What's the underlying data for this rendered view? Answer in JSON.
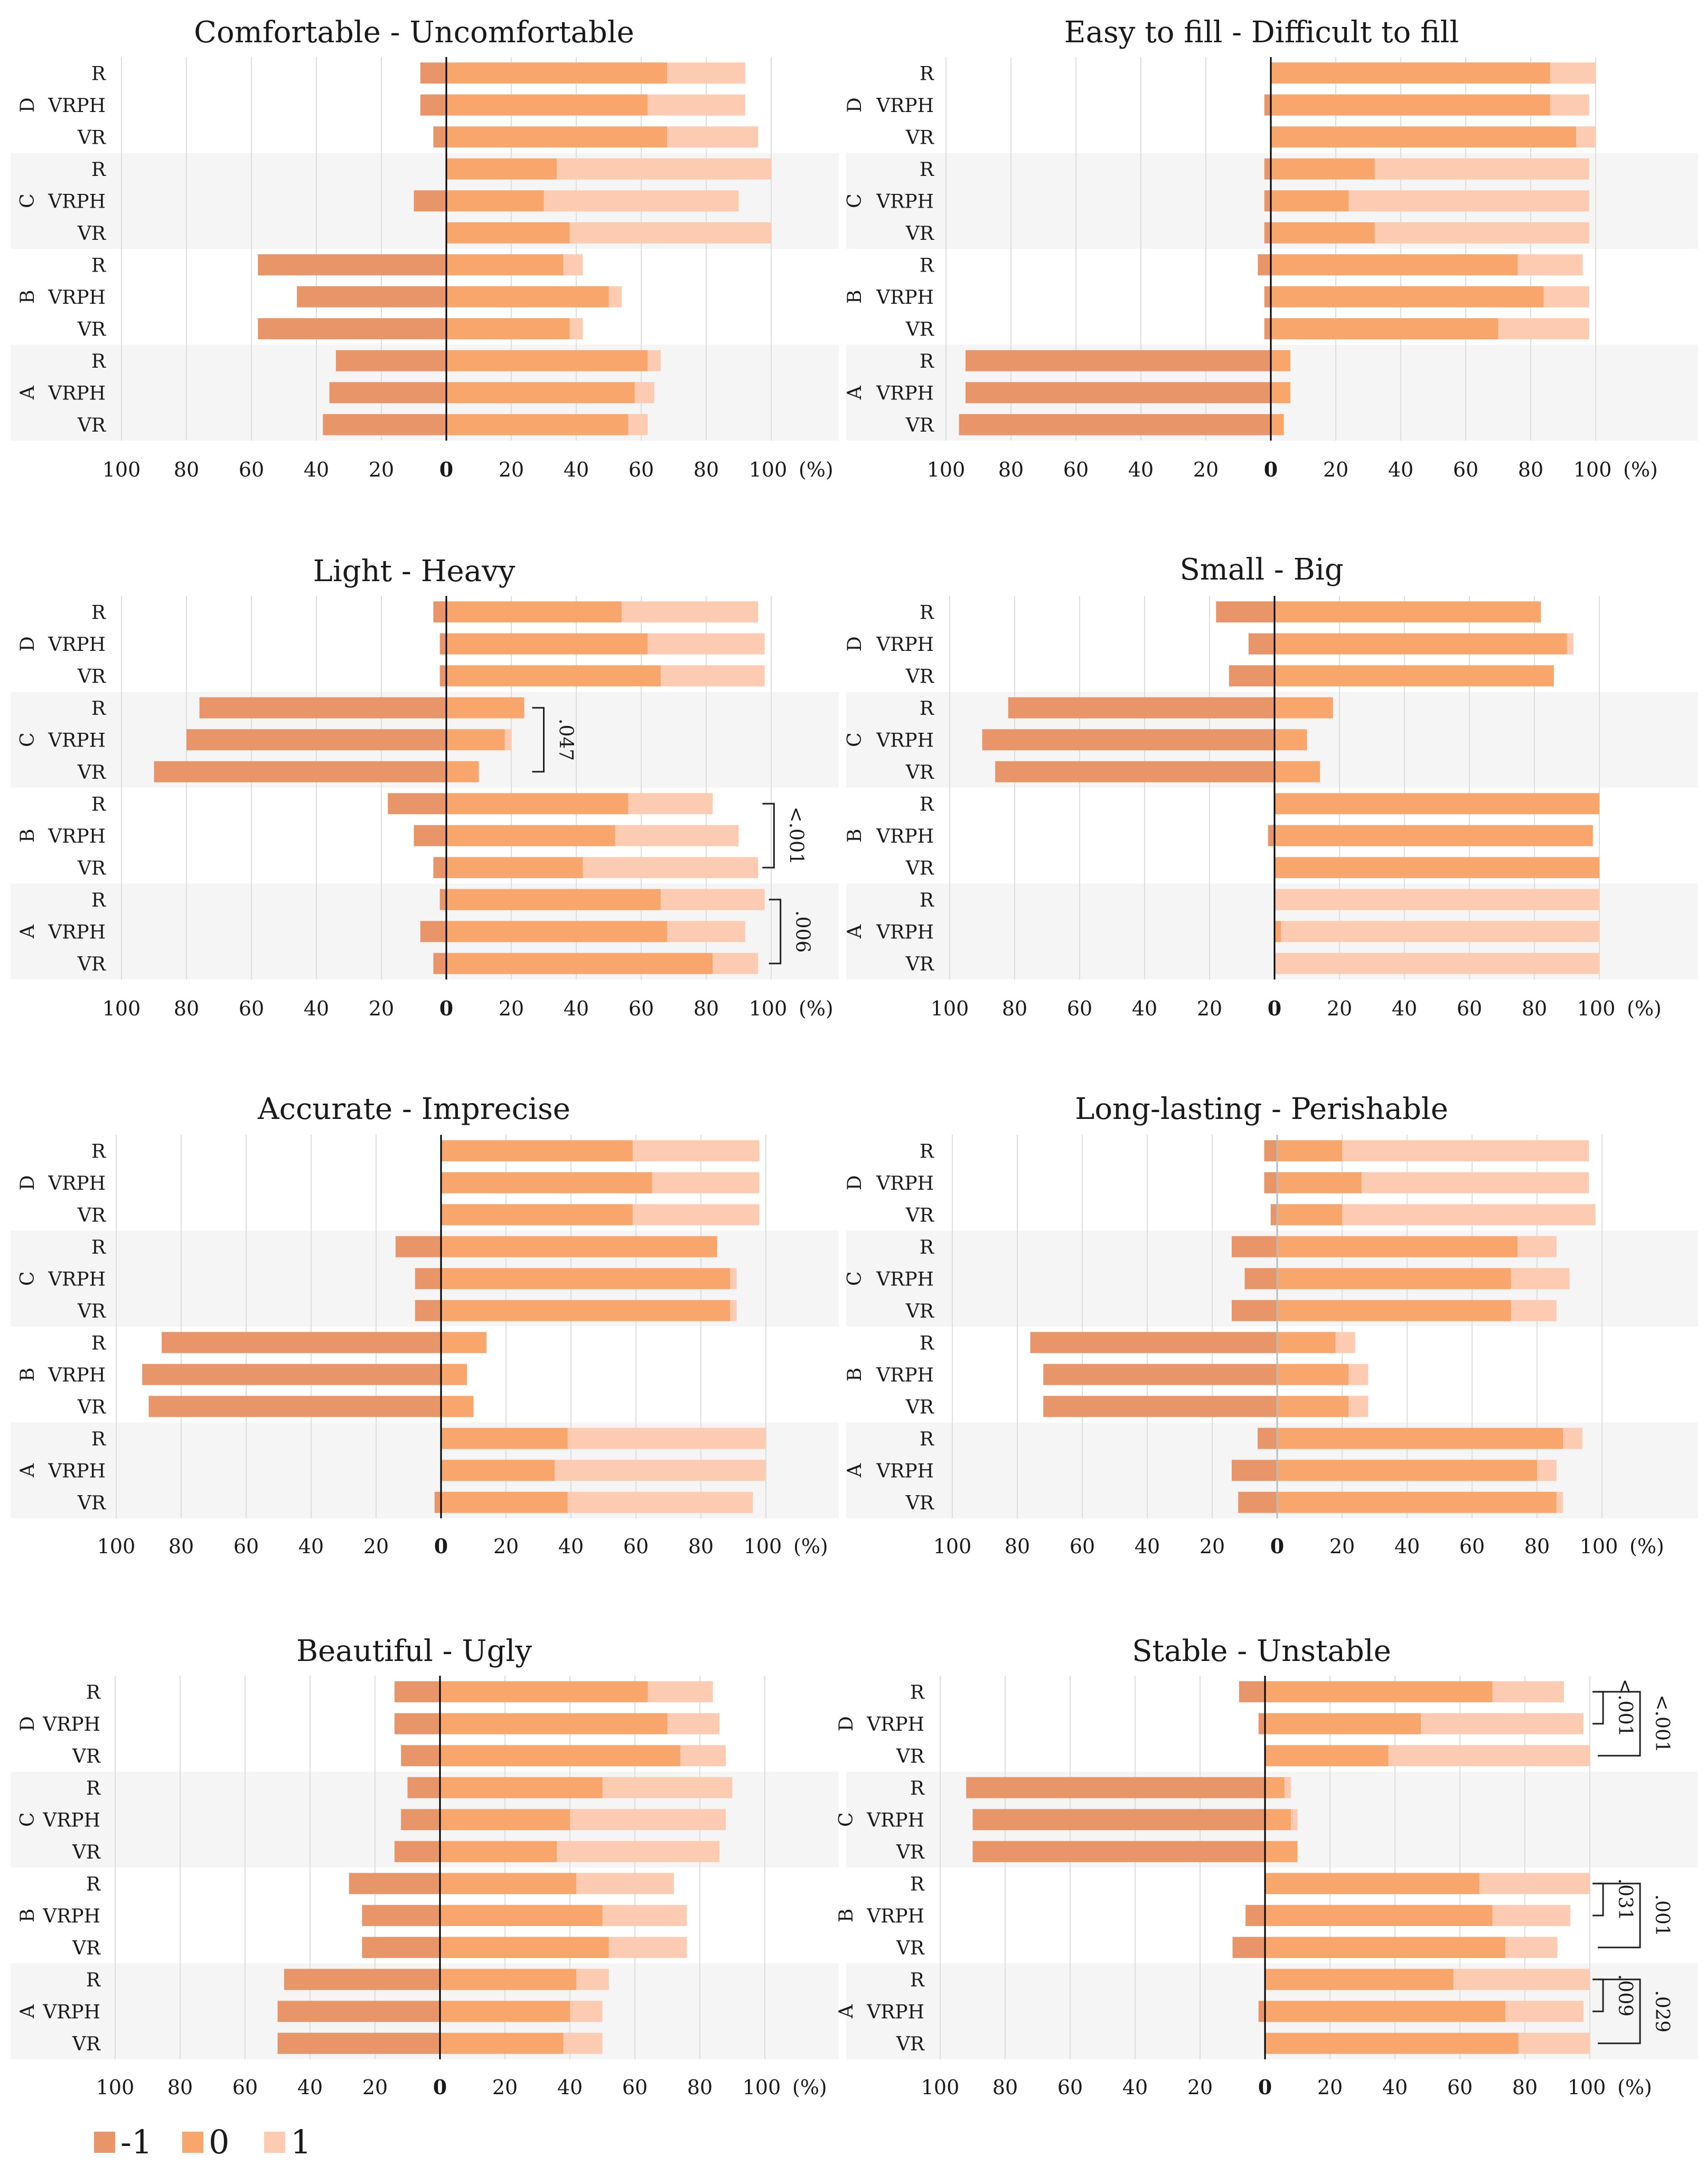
{
  "colors": {
    "neg": "#e8956a",
    "zero": "#f9a66c",
    "pos": "#fdcab2",
    "band": "#f5f5f5",
    "grid": "#dddddd",
    "axis": "#000000",
    "axis_gray": "#bbbbbb"
  },
  "legend": [
    {
      "key": "neg",
      "label": "-1"
    },
    {
      "key": "zero",
      "label": "0"
    },
    {
      "key": "pos",
      "label": "1"
    }
  ],
  "chart_data": [
    {
      "type": "bar",
      "title": "Comfortable - Uncomfortable",
      "xlim": [
        -100,
        100
      ],
      "unit": "(%)",
      "ticks": [
        "100",
        "80",
        "60",
        "40",
        "20",
        "0",
        "20",
        "40",
        "60",
        "80",
        "100"
      ],
      "groups": [
        {
          "label": "D",
          "rows": [
            {
              "label": "R",
              "neg": 8,
              "zero": 68,
              "pos": 24
            },
            {
              "label": "VRPH",
              "neg": 8,
              "zero": 62,
              "pos": 30
            },
            {
              "label": "VR",
              "neg": 4,
              "zero": 68,
              "pos": 28
            }
          ]
        },
        {
          "label": "C",
          "rows": [
            {
              "label": "R",
              "neg": 0,
              "zero": 34,
              "pos": 66
            },
            {
              "label": "VRPH",
              "neg": 10,
              "zero": 30,
              "pos": 60
            },
            {
              "label": "VR",
              "neg": 0,
              "zero": 38,
              "pos": 62
            }
          ]
        },
        {
          "label": "B",
          "rows": [
            {
              "label": "R",
              "neg": 58,
              "zero": 36,
              "pos": 6
            },
            {
              "label": "VRPH",
              "neg": 46,
              "zero": 50,
              "pos": 4
            },
            {
              "label": "VR",
              "neg": 58,
              "zero": 38,
              "pos": 4
            }
          ]
        },
        {
          "label": "A",
          "rows": [
            {
              "label": "R",
              "neg": 34,
              "zero": 62,
              "pos": 4
            },
            {
              "label": "VRPH",
              "neg": 36,
              "zero": 58,
              "pos": 6
            },
            {
              "label": "VR",
              "neg": 38,
              "zero": 56,
              "pos": 6
            }
          ]
        }
      ],
      "annotations": []
    },
    {
      "type": "bar",
      "title": "Easy to fill - Difficult to fill",
      "xlim": [
        -100,
        100
      ],
      "unit": "(%)",
      "ticks": [
        "100",
        "80",
        "60",
        "40",
        "20",
        "0",
        "20",
        "40",
        "60",
        "80",
        "100"
      ],
      "groups": [
        {
          "label": "D",
          "rows": [
            {
              "label": "R",
              "neg": 0,
              "zero": 86,
              "pos": 14
            },
            {
              "label": "VRPH",
              "neg": 2,
              "zero": 86,
              "pos": 12
            },
            {
              "label": "VR",
              "neg": 0,
              "zero": 94,
              "pos": 6
            }
          ]
        },
        {
          "label": "C",
          "rows": [
            {
              "label": "R",
              "neg": 2,
              "zero": 32,
              "pos": 66
            },
            {
              "label": "VRPH",
              "neg": 2,
              "zero": 24,
              "pos": 74
            },
            {
              "label": "VR",
              "neg": 2,
              "zero": 32,
              "pos": 66
            }
          ]
        },
        {
          "label": "B",
          "rows": [
            {
              "label": "R",
              "neg": 4,
              "zero": 76,
              "pos": 20
            },
            {
              "label": "VRPH",
              "neg": 2,
              "zero": 84,
              "pos": 14
            },
            {
              "label": "VR",
              "neg": 2,
              "zero": 70,
              "pos": 28
            }
          ]
        },
        {
          "label": "A",
          "rows": [
            {
              "label": "R",
              "neg": 94,
              "zero": 6,
              "pos": 0
            },
            {
              "label": "VRPH",
              "neg": 94,
              "zero": 6,
              "pos": 0
            },
            {
              "label": "VR",
              "neg": 96,
              "zero": 4,
              "pos": 0
            }
          ]
        }
      ],
      "annotations": []
    },
    {
      "type": "bar",
      "title": "Light - Heavy",
      "xlim": [
        -100,
        100
      ],
      "unit": "(%)",
      "ticks": [
        "100",
        "80",
        "60",
        "40",
        "20",
        "0",
        "20",
        "40",
        "60",
        "80",
        "100"
      ],
      "groups": [
        {
          "label": "D",
          "rows": [
            {
              "label": "R",
              "neg": 4,
              "zero": 54,
              "pos": 42
            },
            {
              "label": "VRPH",
              "neg": 2,
              "zero": 62,
              "pos": 36
            },
            {
              "label": "VR",
              "neg": 2,
              "zero": 66,
              "pos": 32
            }
          ]
        },
        {
          "label": "C",
          "rows": [
            {
              "label": "R",
              "neg": 76,
              "zero": 24,
              "pos": 0
            },
            {
              "label": "VRPH",
              "neg": 80,
              "zero": 18,
              "pos": 2
            },
            {
              "label": "VR",
              "neg": 90,
              "zero": 10,
              "pos": 0
            }
          ]
        },
        {
          "label": "B",
          "rows": [
            {
              "label": "R",
              "neg": 18,
              "zero": 56,
              "pos": 26
            },
            {
              "label": "VRPH",
              "neg": 10,
              "zero": 52,
              "pos": 38
            },
            {
              "label": "VR",
              "neg": 4,
              "zero": 42,
              "pos": 54
            }
          ]
        },
        {
          "label": "A",
          "rows": [
            {
              "label": "R",
              "neg": 2,
              "zero": 66,
              "pos": 32
            },
            {
              "label": "VRPH",
              "neg": 8,
              "zero": 68,
              "pos": 24
            },
            {
              "label": "VR",
              "neg": 4,
              "zero": 82,
              "pos": 14
            }
          ]
        }
      ],
      "annotations": [
        {
          "text": ".047",
          "group": "C",
          "from": "R",
          "to": "VR"
        },
        {
          "text": "<.001",
          "group": "B",
          "from": "R",
          "to": "VR"
        },
        {
          "text": ".006",
          "group": "A",
          "from": "R",
          "to": "VR"
        }
      ]
    },
    {
      "type": "bar",
      "title": "Small - Big",
      "xlim": [
        -100,
        100
      ],
      "unit": "(%)",
      "ticks": [
        "100",
        "80",
        "60",
        "40",
        "20",
        "0",
        "20",
        "40",
        "60",
        "80",
        "100"
      ],
      "groups": [
        {
          "label": "D",
          "rows": [
            {
              "label": "R",
              "neg": 18,
              "zero": 82,
              "pos": 0
            },
            {
              "label": "VRPH",
              "neg": 8,
              "zero": 90,
              "pos": 2
            },
            {
              "label": "VR",
              "neg": 14,
              "zero": 86,
              "pos": 0
            }
          ]
        },
        {
          "label": "C",
          "rows": [
            {
              "label": "R",
              "neg": 82,
              "zero": 18,
              "pos": 0
            },
            {
              "label": "VRPH",
              "neg": 90,
              "zero": 10,
              "pos": 0
            },
            {
              "label": "VR",
              "neg": 86,
              "zero": 14,
              "pos": 0
            }
          ]
        },
        {
          "label": "B",
          "rows": [
            {
              "label": "R",
              "neg": 0,
              "zero": 100,
              "pos": 0
            },
            {
              "label": "VRPH",
              "neg": 2,
              "zero": 98,
              "pos": 0
            },
            {
              "label": "VR",
              "neg": 0,
              "zero": 100,
              "pos": 0
            }
          ]
        },
        {
          "label": "A",
          "rows": [
            {
              "label": "R",
              "neg": 0,
              "zero": 0,
              "pos": 100
            },
            {
              "label": "VRPH",
              "neg": 0,
              "zero": 2,
              "pos": 98
            },
            {
              "label": "VR",
              "neg": 0,
              "zero": 0,
              "pos": 100
            }
          ]
        }
      ],
      "annotations": []
    },
    {
      "type": "bar",
      "title": "Accurate - Imprecise",
      "xlim": [
        -100,
        100
      ],
      "unit": "(%)",
      "ticks": [
        "100",
        "80",
        "60",
        "40",
        "20",
        "0",
        "20",
        "40",
        "60",
        "80",
        "100"
      ],
      "groups": [
        {
          "label": "D",
          "rows": [
            {
              "label": "R",
              "neg": 0,
              "zero": 59,
              "pos": 39
            },
            {
              "label": "VRPH",
              "neg": 0,
              "zero": 65,
              "pos": 33
            },
            {
              "label": "VR",
              "neg": 0,
              "zero": 59,
              "pos": 39
            }
          ]
        },
        {
          "label": "C",
          "rows": [
            {
              "label": "R",
              "neg": 14,
              "zero": 85,
              "pos": 0
            },
            {
              "label": "VRPH",
              "neg": 8,
              "zero": 89,
              "pos": 2
            },
            {
              "label": "VR",
              "neg": 8,
              "zero": 89,
              "pos": 2
            }
          ]
        },
        {
          "label": "B",
          "rows": [
            {
              "label": "R",
              "neg": 86,
              "zero": 14,
              "pos": 0
            },
            {
              "label": "VRPH",
              "neg": 92,
              "zero": 8,
              "pos": 0
            },
            {
              "label": "VR",
              "neg": 90,
              "zero": 10,
              "pos": 0
            }
          ]
        },
        {
          "label": "A",
          "rows": [
            {
              "label": "R",
              "neg": 0,
              "zero": 39,
              "pos": 61
            },
            {
              "label": "VRPH",
              "neg": 0,
              "zero": 35,
              "pos": 65
            },
            {
              "label": "VR",
              "neg": 2,
              "zero": 39,
              "pos": 57
            }
          ]
        }
      ],
      "annotations": []
    },
    {
      "type": "bar",
      "title": "Long-lasting - Perishable",
      "xlim": [
        -100,
        100
      ],
      "unit": "(%)",
      "ticks": [
        "100",
        "80",
        "60",
        "40",
        "20",
        "0",
        "20",
        "40",
        "60",
        "80",
        "100"
      ],
      "groups": [
        {
          "label": "D",
          "rows": [
            {
              "label": "R",
              "neg": 4,
              "zero": 20,
              "pos": 76
            },
            {
              "label": "VRPH",
              "neg": 4,
              "zero": 26,
              "pos": 70
            },
            {
              "label": "VR",
              "neg": 2,
              "zero": 20,
              "pos": 78
            }
          ]
        },
        {
          "label": "C",
          "rows": [
            {
              "label": "R",
              "neg": 14,
              "zero": 74,
              "pos": 12
            },
            {
              "label": "VRPH",
              "neg": 10,
              "zero": 72,
              "pos": 18
            },
            {
              "label": "VR",
              "neg": 14,
              "zero": 72,
              "pos": 14
            }
          ]
        },
        {
          "label": "B",
          "rows": [
            {
              "label": "R",
              "neg": 76,
              "zero": 18,
              "pos": 6
            },
            {
              "label": "VRPH",
              "neg": 72,
              "zero": 22,
              "pos": 6
            },
            {
              "label": "VR",
              "neg": 72,
              "zero": 22,
              "pos": 6
            }
          ]
        },
        {
          "label": "A",
          "rows": [
            {
              "label": "R",
              "neg": 6,
              "zero": 88,
              "pos": 6
            },
            {
              "label": "VRPH",
              "neg": 14,
              "zero": 80,
              "pos": 6
            },
            {
              "label": "VR",
              "neg": 12,
              "zero": 86,
              "pos": 2
            }
          ]
        }
      ],
      "annotations": []
    },
    {
      "type": "bar",
      "title": "Beautiful - Ugly",
      "xlim": [
        -100,
        100
      ],
      "unit": "(%)",
      "ticks": [
        "100",
        "80",
        "60",
        "40",
        "20",
        "0",
        "20",
        "40",
        "60",
        "80",
        "100"
      ],
      "groups": [
        {
          "label": "D",
          "rows": [
            {
              "label": "R",
              "neg": 14,
              "zero": 64,
              "pos": 20
            },
            {
              "label": "VRPH",
              "neg": 14,
              "zero": 70,
              "pos": 16
            },
            {
              "label": "VR",
              "neg": 12,
              "zero": 74,
              "pos": 14
            }
          ]
        },
        {
          "label": "C",
          "rows": [
            {
              "label": "R",
              "neg": 10,
              "zero": 50,
              "pos": 40
            },
            {
              "label": "VRPH",
              "neg": 12,
              "zero": 40,
              "pos": 48
            },
            {
              "label": "VR",
              "neg": 14,
              "zero": 36,
              "pos": 50
            }
          ]
        },
        {
          "label": "B",
          "rows": [
            {
              "label": "R",
              "neg": 28,
              "zero": 42,
              "pos": 30
            },
            {
              "label": "VRPH",
              "neg": 24,
              "zero": 50,
              "pos": 26
            },
            {
              "label": "VR",
              "neg": 24,
              "zero": 52,
              "pos": 24
            }
          ]
        },
        {
          "label": "A",
          "rows": [
            {
              "label": "R",
              "neg": 48,
              "zero": 42,
              "pos": 10
            },
            {
              "label": "VRPH",
              "neg": 50,
              "zero": 40,
              "pos": 10
            },
            {
              "label": "VR",
              "neg": 50,
              "zero": 38,
              "pos": 12
            }
          ]
        }
      ],
      "annotations": []
    },
    {
      "type": "bar",
      "title": "Stable - Unstable",
      "xlim": [
        -100,
        100
      ],
      "unit": "(%)",
      "ticks": [
        "100",
        "80",
        "60",
        "40",
        "20",
        "0",
        "20",
        "40",
        "60",
        "80",
        "100"
      ],
      "groups": [
        {
          "label": "D",
          "rows": [
            {
              "label": "R",
              "neg": 8,
              "zero": 70,
              "pos": 22
            },
            {
              "label": "VRPH",
              "neg": 2,
              "zero": 48,
              "pos": 50
            },
            {
              "label": "VR",
              "neg": 0,
              "zero": 38,
              "pos": 62
            }
          ]
        },
        {
          "label": "C",
          "rows": [
            {
              "label": "R",
              "neg": 92,
              "zero": 6,
              "pos": 2
            },
            {
              "label": "VRPH",
              "neg": 90,
              "zero": 8,
              "pos": 2
            },
            {
              "label": "VR",
              "neg": 90,
              "zero": 10,
              "pos": 0
            }
          ]
        },
        {
          "label": "B",
          "rows": [
            {
              "label": "R",
              "neg": 0,
              "zero": 66,
              "pos": 34
            },
            {
              "label": "VRPH",
              "neg": 6,
              "zero": 70,
              "pos": 24
            },
            {
              "label": "VR",
              "neg": 10,
              "zero": 74,
              "pos": 16
            }
          ]
        },
        {
          "label": "A",
          "rows": [
            {
              "label": "R",
              "neg": 0,
              "zero": 58,
              "pos": 42
            },
            {
              "label": "VRPH",
              "neg": 2,
              "zero": 74,
              "pos": 24
            },
            {
              "label": "VR",
              "neg": 0,
              "zero": 78,
              "pos": 22
            }
          ]
        }
      ],
      "annotations": [
        {
          "text": "<.001",
          "group": "D",
          "from": "R",
          "to": "VRPH"
        },
        {
          "text": "<.001",
          "group": "D",
          "from": "R",
          "to": "VR"
        },
        {
          "text": ".031",
          "group": "B",
          "from": "R",
          "to": "VRPH"
        },
        {
          "text": ".001",
          "group": "B",
          "from": "R",
          "to": "VR"
        },
        {
          "text": ".009",
          "group": "A",
          "from": "R",
          "to": "VRPH"
        },
        {
          "text": ".029",
          "group": "A",
          "from": "R",
          "to": "VR"
        }
      ]
    }
  ]
}
